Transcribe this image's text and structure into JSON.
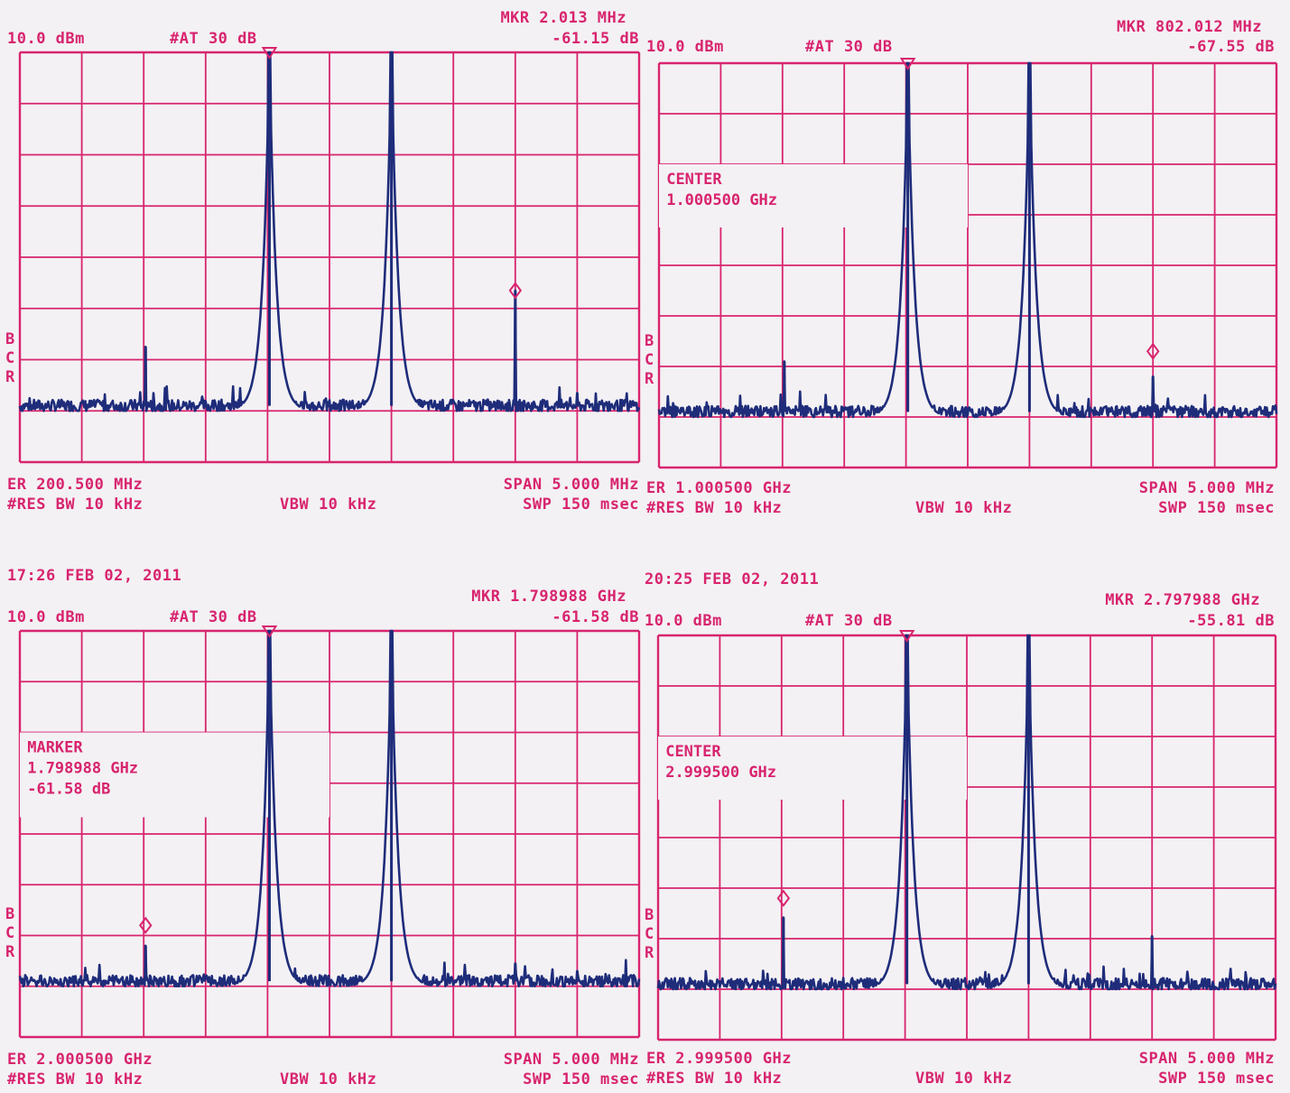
{
  "colors": {
    "grid": "#d8246e",
    "trace": "#1e2c7a",
    "paper": "#f3f1f4"
  },
  "chart_data": [
    {
      "type": "line",
      "ref_level": "10.0 dBm",
      "attenuation": "#AT 30 dB",
      "marker_freq": "MKR  2.013 MHz",
      "marker_value": "-61.15 dB",
      "timestamp": "",
      "box_lines": [],
      "center_label": "ER 200.500 MHz",
      "span_label": "SPAN 5.000 MHz",
      "rbw_label": "#RES BW 10 kHz",
      "vbw_label": "VBW 10 kHz",
      "sweep_label": "SWP 150 msec",
      "side_letters": [
        "B",
        "C",
        "R"
      ],
      "noise_floor": -69,
      "peaks": [
        {
          "x": 2.03,
          "y": -57.5
        },
        {
          "x": 4.03,
          "y": 0
        },
        {
          "x": 6.0,
          "y": 0
        },
        {
          "x": 8.0,
          "y": -46.5
        },
        {
          "x": 9.0,
          "y": -66.5
        }
      ],
      "markers": [
        {
          "x": 4.03,
          "y": 0,
          "style": "top"
        },
        {
          "x": 8.0,
          "y": -46.5,
          "style": "side"
        }
      ],
      "x_divisions": 10,
      "y_divisions": 8,
      "ylim": [
        -80,
        10
      ]
    },
    {
      "type": "line",
      "ref_level": "10.0 dBm",
      "attenuation": "#AT 30 dB",
      "marker_freq": "MKR  802.012 MHz",
      "marker_value": "-67.55 dB",
      "timestamp": "",
      "box_lines": [
        "CENTER",
        "1.000500 GHz"
      ],
      "center_label": "ER 1.000500 GHz",
      "span_label": "SPAN 5.000 MHz",
      "rbw_label": "#RES BW 10 kHz",
      "vbw_label": "VBW 10 kHz",
      "sweep_label": "SWP 150 msec",
      "side_letters": [
        "B",
        "C",
        "R"
      ],
      "noise_floor": -69,
      "peaks": [
        {
          "x": 2.03,
          "y": -59
        },
        {
          "x": 4.03,
          "y": 0
        },
        {
          "x": 6.0,
          "y": 0
        },
        {
          "x": 8.0,
          "y": -62
        }
      ],
      "markers": [
        {
          "x": 4.03,
          "y": 0,
          "style": "top"
        },
        {
          "x": 8.0,
          "y": -57,
          "style": "side"
        }
      ],
      "x_divisions": 10,
      "y_divisions": 8,
      "ylim": [
        -80,
        10
      ]
    },
    {
      "type": "line",
      "ref_level": "10.0 dBm",
      "attenuation": "#AT 30 dB",
      "marker_freq": "MKR  1.798988 GHz",
      "marker_value": "-61.58 dB",
      "timestamp": "17:26 FEB 02, 2011",
      "box_lines": [
        "MARKER",
        "1.798988 GHz",
        "-61.58 dB"
      ],
      "center_label": "ER 2.000500 GHz",
      "span_label": "SPAN 5.000 MHz",
      "rbw_label": "#RES BW 10 kHz",
      "vbw_label": "VBW 10 kHz",
      "sweep_label": "SWP 150 msec",
      "side_letters": [
        "B",
        "C",
        "R"
      ],
      "noise_floor": -69,
      "peaks": [
        {
          "x": 2.03,
          "y": -62
        },
        {
          "x": 4.03,
          "y": 0
        },
        {
          "x": 6.0,
          "y": 0
        },
        {
          "x": 8.0,
          "y": -65.5
        },
        {
          "x": 9.0,
          "y": -67
        }
      ],
      "markers": [
        {
          "x": 4.03,
          "y": 0,
          "style": "top"
        },
        {
          "x": 2.03,
          "y": -58,
          "style": "side"
        }
      ],
      "x_divisions": 10,
      "y_divisions": 8,
      "ylim": [
        -80,
        10
      ]
    },
    {
      "type": "line",
      "ref_level": "10.0 dBm",
      "attenuation": "#AT 30 dB",
      "marker_freq": "MKR  2.797988 GHz",
      "marker_value": "-55.81 dB",
      "timestamp": "20:25 FEB 02, 2011",
      "box_lines": [
        "CENTER",
        "2.999500 GHz"
      ],
      "center_label": "ER 2.999500 GHz",
      "span_label": "SPAN 5.000 MHz",
      "rbw_label": "#RES BW 10 kHz",
      "vbw_label": "VBW 10 kHz",
      "sweep_label": "SWP 150 msec",
      "side_letters": [
        "B",
        "C",
        "R"
      ],
      "noise_floor": -69,
      "peaks": [
        {
          "x": 2.03,
          "y": -55.8
        },
        {
          "x": 4.03,
          "y": 0
        },
        {
          "x": 6.0,
          "y": 0
        },
        {
          "x": 8.0,
          "y": -59.5
        }
      ],
      "markers": [
        {
          "x": 4.03,
          "y": 0,
          "style": "top"
        },
        {
          "x": 2.03,
          "y": -52,
          "style": "side"
        }
      ],
      "x_divisions": 10,
      "y_divisions": 8,
      "ylim": [
        -80,
        10
      ]
    }
  ]
}
